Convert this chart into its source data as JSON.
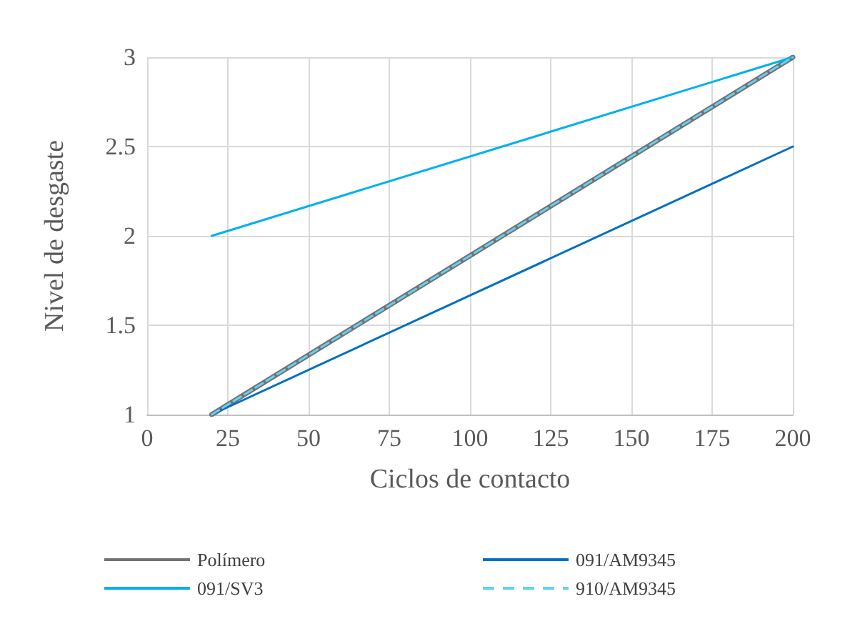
{
  "chart_data": {
    "type": "line",
    "xlabel": "Ciclos de contacto",
    "ylabel": "Nivel de desgaste",
    "xlim": [
      0,
      200
    ],
    "xticks": [
      0,
      25,
      50,
      75,
      100,
      125,
      150,
      175,
      200
    ],
    "ylim": [
      1,
      3
    ],
    "yticks": [
      1,
      1.5,
      2,
      2.5,
      3
    ],
    "x": [
      20,
      200
    ],
    "grid": true,
    "legend": "bottom",
    "marker": "none",
    "series": [
      {
        "name": "Polímero",
        "color": "#767171",
        "values": [
          1,
          3
        ],
        "line_style": "solid"
      },
      {
        "name": "091/AM9345",
        "color": "#0070c0",
        "values": [
          1,
          2.5
        ],
        "line_style": "solid"
      },
      {
        "name": "091/SV3",
        "color": "#00b0f0",
        "values": [
          2,
          3
        ],
        "line_style": "solid"
      },
      {
        "name": "910/AM9345",
        "color": "#5fd3f7",
        "values": [
          1,
          3
        ],
        "line_style": "dashed"
      }
    ]
  }
}
